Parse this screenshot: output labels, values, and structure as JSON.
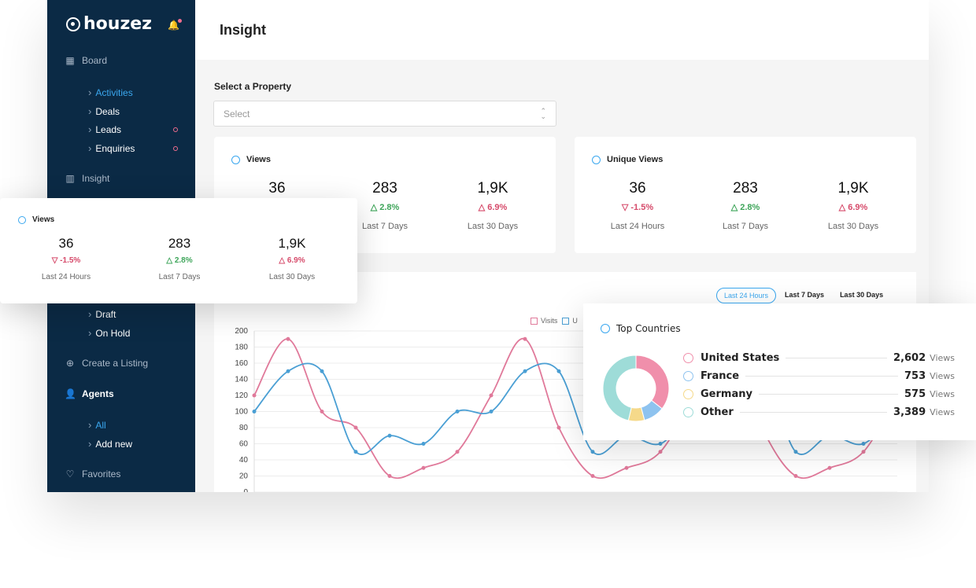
{
  "sidebar": {
    "brand": "houzez",
    "items": {
      "board": "Board",
      "activities": "Activities",
      "deals": "Deals",
      "leads": "Leads",
      "enquiries": "Enquiries",
      "insight": "Insight",
      "draft": "Draft",
      "on_hold": "On Hold",
      "create_listing": "Create a Listing",
      "agents": "Agents",
      "all": "All",
      "add_new": "Add new",
      "favorites": "Favorites"
    }
  },
  "header": {
    "title": "Insight"
  },
  "property_select": {
    "label": "Select a Property",
    "value": "Select"
  },
  "views_card": {
    "title": "Views",
    "stats": [
      {
        "value": "36",
        "change": "-1.5%",
        "direction": "down",
        "label": "Last 24 Hours"
      },
      {
        "value": "283",
        "change": "2.8%",
        "direction": "up",
        "label": "Last 7 Days"
      },
      {
        "value": "1,9K",
        "change": "6.9%",
        "direction": "down",
        "label": "Last 30 Days"
      }
    ]
  },
  "unique_views_card": {
    "title": "Unique Views",
    "stats": [
      {
        "value": "36",
        "change": "-1.5%",
        "direction": "down",
        "label": "Last 24 Hours"
      },
      {
        "value": "283",
        "change": "2.8%",
        "direction": "up",
        "label": "Last 7 Days"
      },
      {
        "value": "1,9K",
        "change": "6.9%",
        "direction": "down",
        "label": "Last 30 Days"
      }
    ]
  },
  "range_buttons": {
    "active": "Last 24 Hours",
    "week": "Last 7 Days",
    "month": "Last 30 Days"
  },
  "chart_data": {
    "type": "line",
    "y_ticks": [
      0,
      20,
      40,
      60,
      80,
      100,
      120,
      140,
      160,
      180,
      200
    ],
    "ylim": [
      0,
      200
    ],
    "grid": true,
    "legend": "top-center",
    "series": [
      {
        "name": "Visits",
        "color": "#e0799a",
        "values": [
          120,
          190,
          100,
          80,
          20,
          30,
          50,
          120,
          190,
          80,
          20,
          30,
          50,
          120,
          190,
          80,
          20,
          30,
          50,
          120
        ]
      },
      {
        "name": "Unique",
        "color": "#4a9fd4",
        "values": [
          100,
          150,
          150,
          50,
          70,
          60,
          100,
          100,
          150,
          150,
          50,
          70,
          60,
          100,
          100,
          150,
          50,
          70,
          60,
          100
        ]
      }
    ]
  },
  "legend_labels": {
    "visits": "Visits",
    "unique": "U"
  },
  "top_countries": {
    "title": "Top Countries",
    "unit": "Views",
    "rows": [
      {
        "name": "United States",
        "value": "2,602",
        "num": 2602,
        "color": "#f08fab"
      },
      {
        "name": "France",
        "value": "753",
        "num": 753,
        "color": "#8ec3ef"
      },
      {
        "name": "Germany",
        "value": "575",
        "num": 575,
        "color": "#f5d98a"
      },
      {
        "name": "Other",
        "value": "3,389",
        "num": 3389,
        "color": "#9edcd8"
      }
    ]
  }
}
